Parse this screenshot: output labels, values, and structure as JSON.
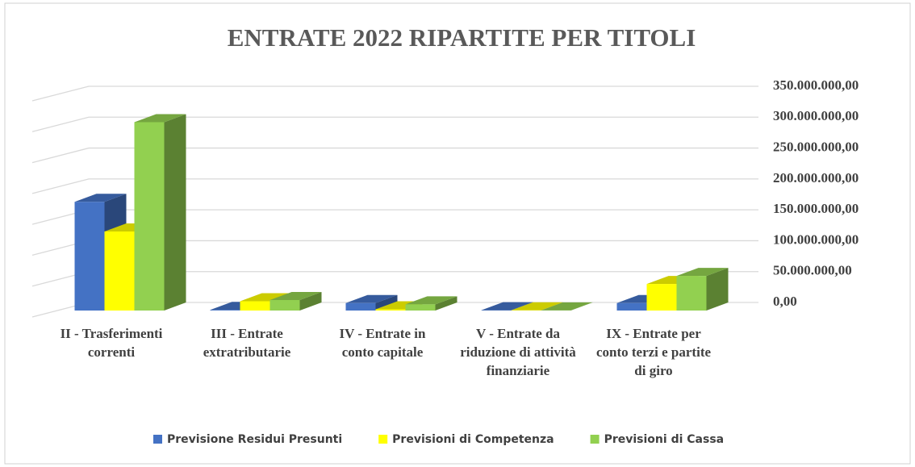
{
  "chart_data": {
    "type": "bar3d",
    "title": "ENTRATE  2022 RIPARTITE  PER TITOLI",
    "categories": [
      "II - Trasferimenti correnti",
      "III - Entrate extratributarie",
      "IV - Entrate in conto capitale",
      "V -  Entrate da riduzione di attività finanziarie",
      "IX - Entrate per conto terzi e partite di giro"
    ],
    "series": [
      {
        "name": "Previsione Residui Presunti",
        "color": "#4472c4",
        "values": [
          176000000,
          1000000,
          12000000,
          500000,
          12000000
        ]
      },
      {
        "name": "Previsioni di Competenza",
        "color": "#ffff00",
        "values": [
          128000000,
          15000000,
          2000000,
          300000,
          43000000
        ]
      },
      {
        "name": "Previsioni di Cassa",
        "color": "#92d050",
        "values": [
          305000000,
          17000000,
          10000000,
          200000,
          56000000
        ]
      }
    ],
    "ylim": [
      0,
      350000000
    ],
    "yticks": [
      {
        "value": 0,
        "label": "0,00"
      },
      {
        "value": 50000000,
        "label": "50.000.000,00"
      },
      {
        "value": 100000000,
        "label": "100.000.000,00"
      },
      {
        "value": 150000000,
        "label": "150.000.000,00"
      },
      {
        "value": 200000000,
        "label": "200.000.000,00"
      },
      {
        "value": 250000000,
        "label": "250.000.000,00"
      },
      {
        "value": 300000000,
        "label": "300.000.000,00"
      },
      {
        "value": 350000000,
        "label": "350.000.000,00"
      }
    ],
    "grid": true,
    "legend": "bottom"
  }
}
